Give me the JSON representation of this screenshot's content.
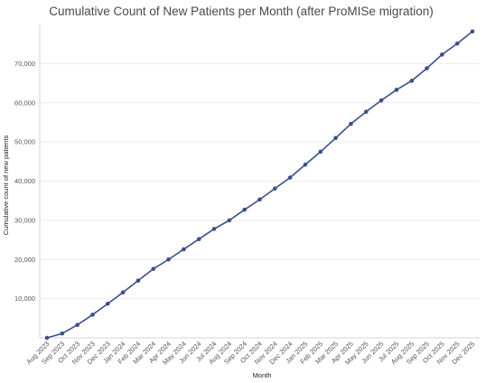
{
  "chart_data": {
    "type": "line",
    "title": "Cumulative Count of New Patients per Month (after ProMISe migration)",
    "xlabel": "Month",
    "ylabel": "Cumulative count of new patients",
    "ylim": [
      0,
      80000
    ],
    "yticks": [
      10000,
      20000,
      30000,
      40000,
      50000,
      60000,
      70000
    ],
    "ytick_labels": [
      "10,000",
      "20,000",
      "30,000",
      "40,000",
      "50,000",
      "60,000",
      "70,000"
    ],
    "grid": true,
    "legend": "none",
    "line_color": "#3b4f8c",
    "categories": [
      "Aug 2023",
      "Sep 2023",
      "Oct 2023",
      "Nov 2023",
      "Dec 2023",
      "Jan 2024",
      "Feb 2024",
      "Mar 2024",
      "Apr 2024",
      "May 2024",
      "Jun 2024",
      "Jul 2024",
      "Aug 2024",
      "Sep 2024",
      "Oct 2024",
      "Nov 2024",
      "Dec 2024",
      "Jan 2025",
      "Feb 2025",
      "Mar 2025",
      "Apr 2025",
      "May 2025",
      "Jun 2025",
      "Jul 2025",
      "Aug 2025",
      "Sep 2025",
      "Oct 2025",
      "Nov 2025",
      "Dec 2025"
    ],
    "series": [
      {
        "values": [
          0,
          1100,
          3300,
          5900,
          8700,
          11600,
          14600,
          17600,
          20000,
          22600,
          25200,
          27800,
          30000,
          32700,
          35300,
          38100,
          40900,
          44200,
          47500,
          51000,
          54600,
          57700,
          60600,
          63300,
          65600,
          68800,
          72300,
          75100,
          78200
        ]
      }
    ]
  }
}
